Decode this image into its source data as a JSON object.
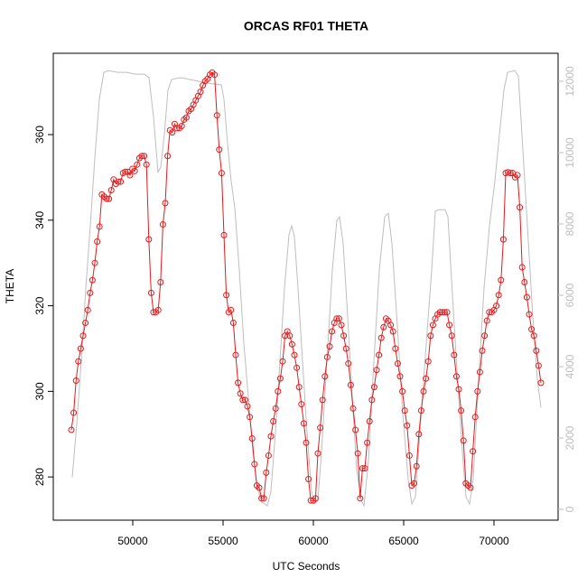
{
  "chart_data": {
    "type": "line",
    "title": "ORCAS RF01 THETA",
    "xlabel": "UTC Seconds",
    "ylabel": "THETA",
    "xlim": [
      45600,
      73550
    ],
    "ylim": [
      269.9,
      379
    ],
    "y2lim": [
      -304,
      12785
    ],
    "xticks": [
      50000,
      55000,
      60000,
      65000,
      70000
    ],
    "yticks": [
      280,
      300,
      320,
      340,
      360
    ],
    "y2ticks": [
      0,
      2000,
      4000,
      6000,
      8000,
      10000,
      12000
    ],
    "series": [
      {
        "color": "#bebebe",
        "axis": "y2",
        "markers": false,
        "x": [
          46650,
          46900,
          47150,
          47400,
          47650,
          47900,
          48150,
          48400,
          48650,
          49150,
          49650,
          50150,
          50650,
          50900,
          51150,
          51400,
          51550,
          51750,
          51950,
          52150,
          52650,
          53150,
          53650,
          54150,
          54900,
          55050,
          55250,
          55450,
          55650,
          55900,
          56150,
          56400,
          56650,
          56900,
          57150,
          57450,
          57650,
          57900,
          58150,
          58400,
          58650,
          58800,
          58950,
          59150,
          59400,
          59650,
          59900,
          60050,
          60250,
          60450,
          60750,
          61050,
          61300,
          61450,
          61650,
          61900,
          62150,
          62400,
          62650,
          62800,
          63050,
          63350,
          63650,
          63950,
          64150,
          64350,
          64650,
          64950,
          65250,
          65450,
          65650,
          65900,
          66250,
          66550,
          66750,
          66900,
          67300,
          67450,
          67650,
          67950,
          68250,
          68450,
          68650,
          68850,
          69150,
          69450,
          69750,
          70050,
          70300,
          70550,
          70750,
          71150,
          71350,
          71550,
          71850,
          72150,
          72400,
          72600
        ],
        "values": [
          900,
          2400,
          4150,
          6200,
          7950,
          9850,
          11500,
          12250,
          12300,
          12250,
          12250,
          12200,
          12200,
          12100,
          11000,
          9450,
          9600,
          10500,
          11750,
          12050,
          12100,
          12050,
          12000,
          11950,
          11900,
          11500,
          10250,
          9200,
          8450,
          6700,
          4650,
          3150,
          1620,
          600,
          200,
          100,
          500,
          2150,
          4150,
          6200,
          7700,
          7950,
          7650,
          6200,
          4150,
          2150,
          500,
          150,
          250,
          1600,
          4150,
          6700,
          8100,
          8200,
          7450,
          5400,
          3150,
          1100,
          250,
          100,
          1350,
          4150,
          6700,
          8200,
          8300,
          7450,
          5150,
          2650,
          850,
          150,
          350,
          2150,
          4650,
          6700,
          8350,
          8400,
          8400,
          8200,
          6450,
          3900,
          1600,
          350,
          150,
          850,
          3650,
          6200,
          7950,
          9200,
          10500,
          11750,
          12250,
          12300,
          12150,
          10500,
          7950,
          5400,
          3650,
          2850
        ]
      },
      {
        "color": "#e41a1c",
        "markers": true,
        "x": [
          46600,
          46730,
          46860,
          46990,
          47120,
          47250,
          47380,
          47510,
          47640,
          47770,
          47900,
          48030,
          48160,
          48290,
          48420,
          48550,
          48680,
          48810,
          48940,
          49070,
          49200,
          49330,
          49460,
          49590,
          49720,
          49850,
          49980,
          50110,
          50240,
          50370,
          50500,
          50630,
          50760,
          50890,
          51020,
          51150,
          51280,
          51410,
          51540,
          51670,
          51800,
          51930,
          52060,
          52190,
          52320,
          52450,
          52580,
          52710,
          52840,
          52970,
          53100,
          53230,
          53360,
          53490,
          53620,
          53750,
          53880,
          54010,
          54140,
          54270,
          54400,
          54530,
          54660,
          54790,
          54920,
          55050,
          55180,
          55310,
          55440,
          55570,
          55700,
          55830,
          55960,
          56090,
          56220,
          56350,
          56480,
          56610,
          56740,
          56870,
          57000,
          57130,
          57260,
          57390,
          57520,
          57650,
          57780,
          57910,
          58040,
          58170,
          58300,
          58430,
          58560,
          58690,
          58820,
          58950,
          59080,
          59210,
          59340,
          59470,
          59600,
          59730,
          59860,
          59990,
          60120,
          60250,
          60380,
          60510,
          60640,
          60770,
          60900,
          61030,
          61160,
          61290,
          61420,
          61550,
          61680,
          61810,
          61940,
          62070,
          62200,
          62330,
          62460,
          62590,
          62720,
          62850,
          62980,
          63110,
          63240,
          63370,
          63500,
          63630,
          63760,
          63890,
          64020,
          64150,
          64280,
          64410,
          64540,
          64670,
          64800,
          64930,
          65060,
          65190,
          65320,
          65450,
          65580,
          65710,
          65840,
          65970,
          66100,
          66230,
          66360,
          66490,
          66620,
          66750,
          66880,
          67010,
          67140,
          67270,
          67400,
          67530,
          67660,
          67790,
          67920,
          68050,
          68180,
          68310,
          68440,
          68570,
          68700,
          68830,
          68960,
          69090,
          69220,
          69350,
          69480,
          69610,
          69740,
          69870,
          70000,
          70130,
          70260,
          70390,
          70520,
          70650,
          70780,
          70910,
          71040,
          71170,
          71300,
          71430,
          71560,
          71690,
          71820,
          71950,
          72080,
          72210,
          72340,
          72470,
          72600
        ],
        "values": [
          291,
          295,
          302.5,
          307,
          310,
          313,
          316,
          319,
          323,
          326,
          330,
          335,
          338.5,
          346,
          345.5,
          345,
          345,
          347,
          349.5,
          348.5,
          349,
          349,
          351,
          351.3,
          351.3,
          350.5,
          352,
          351.5,
          353,
          354.5,
          355,
          355,
          353,
          335.5,
          323,
          318.5,
          318.5,
          319,
          325.5,
          339,
          344,
          355,
          361,
          360.5,
          362.5,
          361.5,
          361.5,
          362,
          363.5,
          364,
          365.5,
          366,
          367,
          368,
          369,
          370,
          371.5,
          372.5,
          373,
          374,
          374.5,
          374,
          364.5,
          356.5,
          351,
          336.5,
          322.5,
          318.5,
          319,
          316,
          308.5,
          302,
          299.5,
          298,
          298,
          296.5,
          294,
          289,
          283,
          278,
          277.5,
          275,
          275,
          281,
          285,
          289.5,
          293,
          296,
          300,
          303,
          307,
          313,
          314,
          313,
          311,
          308.5,
          305.5,
          301,
          297,
          292.5,
          288,
          279.5,
          274.5,
          274.5,
          275,
          285.5,
          291.5,
          298,
          303.5,
          308,
          310.5,
          314,
          316,
          317,
          317,
          315.5,
          313,
          310,
          306.5,
          301.5,
          296,
          291,
          285.5,
          275,
          282,
          282,
          288,
          293,
          298,
          301,
          305,
          308.5,
          312.5,
          315,
          317,
          316.5,
          315.5,
          314,
          310,
          306.5,
          303.5,
          300,
          295.5,
          292,
          285,
          278,
          278.5,
          282.5,
          290,
          295.5,
          300,
          303,
          307,
          313,
          315.5,
          317,
          318,
          318.5,
          318.5,
          318.5,
          318.5,
          315.5,
          313,
          308.5,
          303.5,
          300.5,
          295.5,
          288.5,
          278.5,
          278,
          277.5,
          286,
          294,
          300,
          304.5,
          309.5,
          313,
          316.5,
          318.5,
          318.5,
          319,
          320,
          322.5,
          326,
          335.5,
          351,
          351.2,
          351,
          351,
          350,
          350.5,
          343,
          329,
          325.5,
          322,
          318,
          314.5,
          313,
          309.5,
          306,
          302
        ]
      }
    ]
  }
}
